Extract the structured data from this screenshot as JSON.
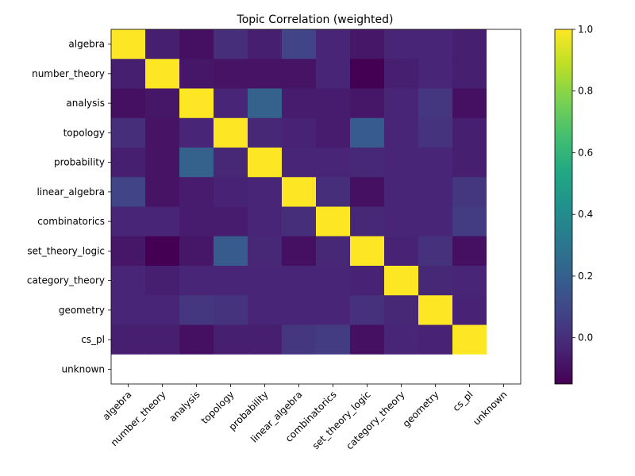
{
  "chart_data": {
    "type": "heatmap",
    "title": "Topic Correlation (weighted)",
    "xlabel": "",
    "ylabel": "",
    "labels": [
      "algebra",
      "number_theory",
      "analysis",
      "topology",
      "probability",
      "linear_algebra",
      "combinatorics",
      "set_theory_logic",
      "category_theory",
      "geometry",
      "cs_pl",
      "unknown"
    ],
    "matrix": [
      [
        1.0,
        -0.05,
        -0.1,
        0.0,
        -0.05,
        0.08,
        -0.03,
        -0.08,
        -0.03,
        -0.03,
        -0.05,
        null
      ],
      [
        -0.05,
        1.0,
        -0.08,
        -0.09,
        -0.09,
        -0.09,
        -0.03,
        -0.15,
        -0.05,
        -0.03,
        -0.05,
        null
      ],
      [
        -0.1,
        -0.08,
        1.0,
        -0.03,
        0.21,
        -0.06,
        -0.06,
        -0.08,
        -0.03,
        0.03,
        -0.1,
        null
      ],
      [
        0.0,
        -0.09,
        -0.03,
        1.0,
        -0.02,
        -0.04,
        -0.06,
        0.18,
        -0.03,
        0.02,
        -0.05,
        null
      ],
      [
        -0.05,
        -0.09,
        0.21,
        -0.02,
        1.0,
        -0.03,
        -0.03,
        -0.02,
        -0.03,
        -0.03,
        -0.05,
        null
      ],
      [
        0.08,
        -0.09,
        -0.06,
        -0.04,
        -0.03,
        1.0,
        0.0,
        -0.1,
        -0.03,
        -0.03,
        0.03,
        null
      ],
      [
        -0.03,
        -0.03,
        -0.06,
        -0.06,
        -0.03,
        0.0,
        1.0,
        -0.02,
        -0.03,
        -0.03,
        0.05,
        null
      ],
      [
        -0.08,
        -0.15,
        -0.08,
        0.18,
        -0.02,
        -0.1,
        -0.02,
        1.0,
        -0.04,
        0.01,
        -0.1,
        null
      ],
      [
        -0.03,
        -0.05,
        -0.03,
        -0.03,
        -0.03,
        -0.03,
        -0.03,
        -0.04,
        1.0,
        -0.02,
        -0.03,
        null
      ],
      [
        -0.03,
        -0.03,
        0.03,
        0.02,
        -0.03,
        -0.03,
        -0.03,
        0.01,
        -0.02,
        1.0,
        -0.04,
        null
      ],
      [
        -0.05,
        -0.05,
        -0.1,
        -0.05,
        -0.05,
        0.03,
        0.05,
        -0.1,
        -0.03,
        -0.04,
        1.0,
        null
      ],
      [
        null,
        null,
        null,
        null,
        null,
        null,
        null,
        null,
        null,
        null,
        null,
        null
      ]
    ],
    "colorbar": {
      "min": -0.15,
      "max": 1.0,
      "ticks": [
        1.0,
        0.8,
        0.6,
        0.4,
        0.2,
        0.0
      ],
      "tick_labels": [
        "1.0",
        "0.8",
        "0.6",
        "0.4",
        "0.2",
        "0.0"
      ],
      "colormap": "viridis"
    },
    "grid": false
  }
}
